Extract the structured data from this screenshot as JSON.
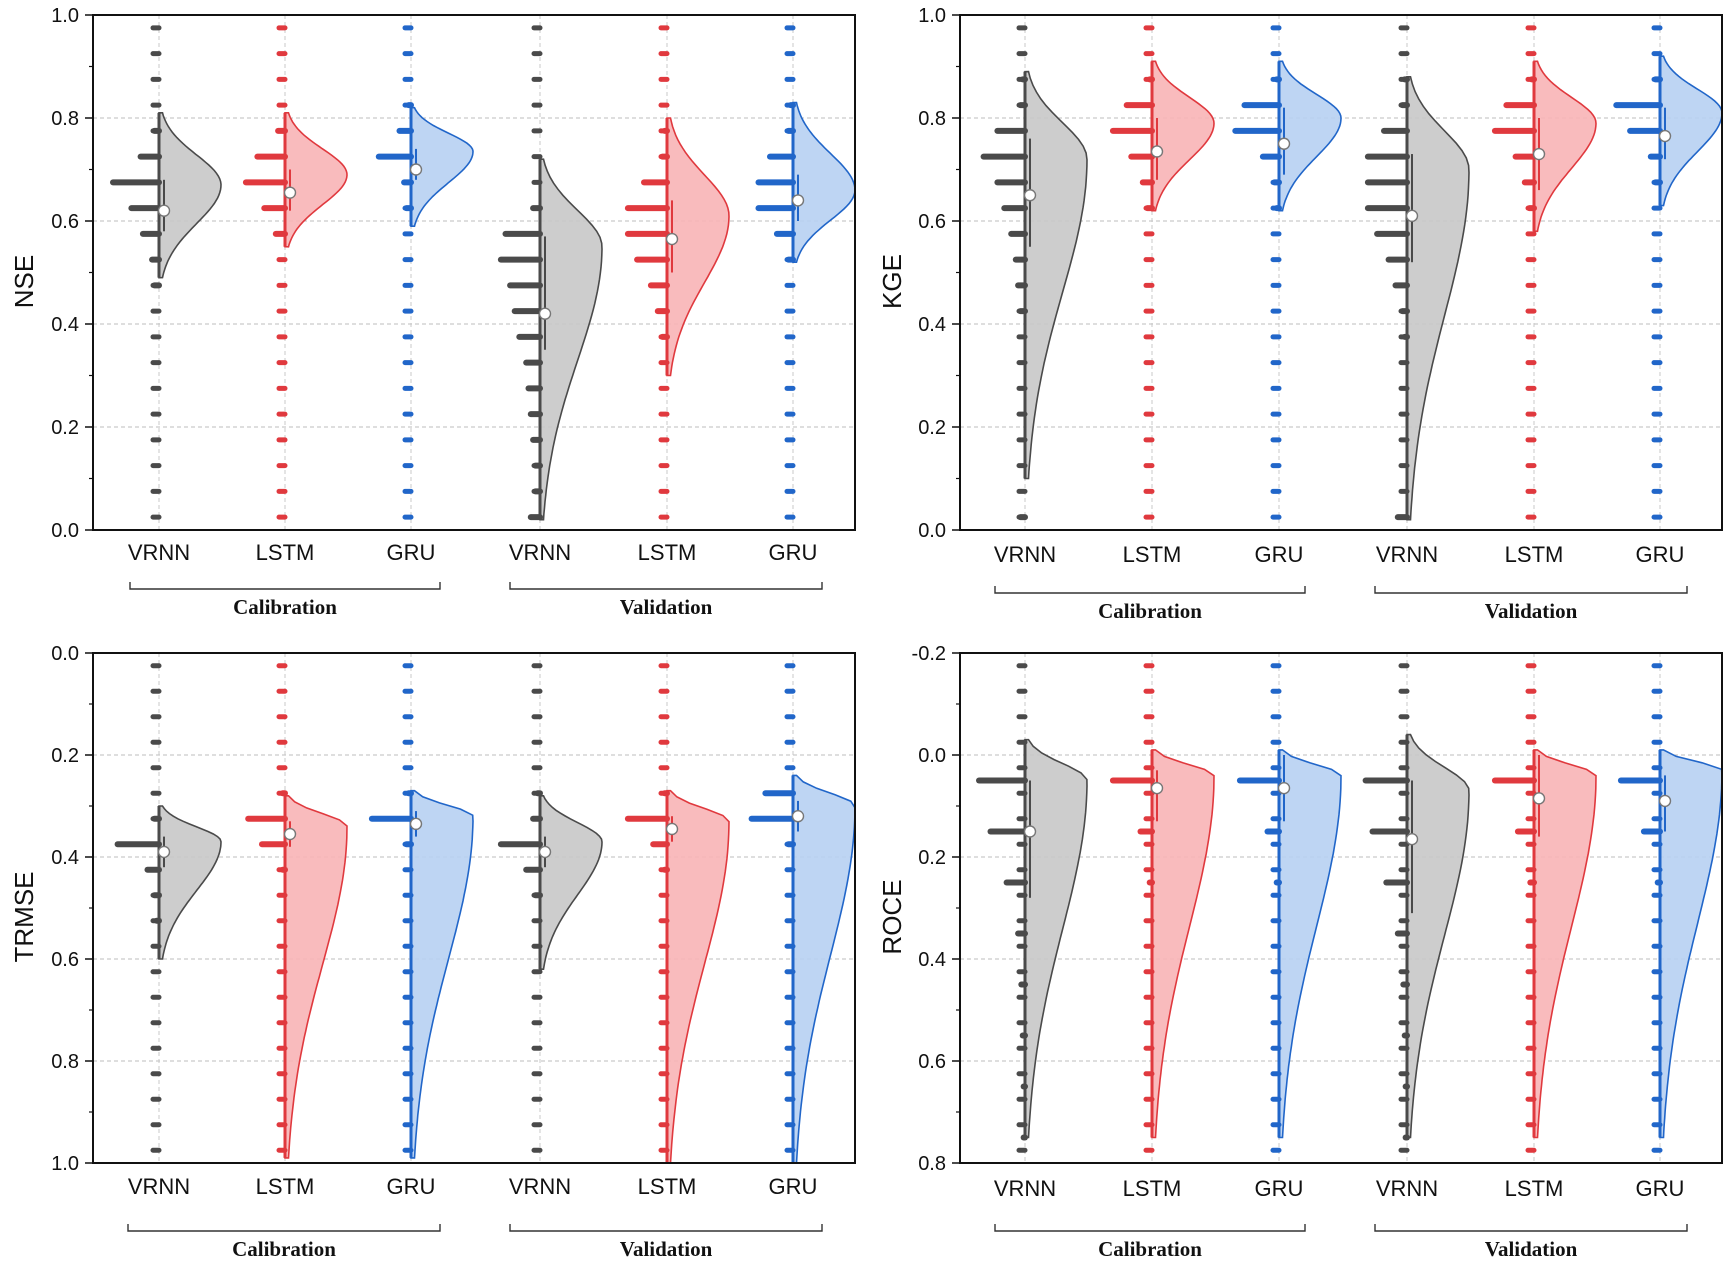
{
  "colors": {
    "VRNN": "#4a4a4a",
    "LSTM": "#e0393e",
    "GRU": "#2166c9",
    "VRNN_fill": "#c8c8c8",
    "LSTM_fill": "#f8b4b6",
    "GRU_fill": "#b7d0f2"
  },
  "chart_data": [
    {
      "type": "violin",
      "ylabel": "NSE",
      "ylim": [
        0.0,
        1.0
      ],
      "y_inverted": false,
      "yticks": [
        "0.0",
        "0.2",
        "0.4",
        "0.6",
        "0.8",
        "1.0"
      ],
      "categories": [
        "VRNN",
        "LSTM",
        "GRU",
        "VRNN",
        "LSTM",
        "GRU"
      ],
      "groups": [
        "Calibration",
        "Validation"
      ],
      "grid": true,
      "series": [
        {
          "model": "VRNN",
          "group": "Calibration",
          "mean": 0.62,
          "q1": 0.58,
          "q3": 0.68,
          "mode": 0.67,
          "min": 0.49,
          "max": 0.81,
          "hist": [
            [
              0.775,
              0.1
            ],
            [
              0.725,
              0.4
            ],
            [
              0.675,
              1.0
            ],
            [
              0.625,
              0.6
            ],
            [
              0.575,
              0.35
            ],
            [
              0.525,
              0.15
            ],
            [
              0.475,
              0.1
            ]
          ]
        },
        {
          "model": "LSTM",
          "group": "Calibration",
          "mean": 0.655,
          "q1": 0.62,
          "q3": 0.7,
          "mode": 0.69,
          "min": 0.55,
          "max": 0.81,
          "hist": [
            [
              0.775,
              0.15
            ],
            [
              0.725,
              0.6
            ],
            [
              0.675,
              0.85
            ],
            [
              0.625,
              0.45
            ],
            [
              0.575,
              0.2
            ]
          ]
        },
        {
          "model": "GRU",
          "group": "Calibration",
          "mean": 0.7,
          "q1": 0.68,
          "q3": 0.74,
          "mode": 0.735,
          "min": 0.59,
          "max": 0.82,
          "hist": [
            [
              0.825,
              0.05
            ],
            [
              0.775,
              0.25
            ],
            [
              0.725,
              0.7
            ],
            [
              0.675,
              0.15
            ],
            [
              0.625,
              0.1
            ]
          ]
        },
        {
          "model": "VRNN",
          "group": "Validation",
          "mean": 0.42,
          "q1": 0.35,
          "q3": 0.57,
          "mode": 0.55,
          "min": 0.02,
          "max": 0.72,
          "hist": [
            [
              0.625,
              0.15
            ],
            [
              0.575,
              0.75
            ],
            [
              0.525,
              0.85
            ],
            [
              0.475,
              0.65
            ],
            [
              0.425,
              0.55
            ],
            [
              0.375,
              0.45
            ],
            [
              0.325,
              0.3
            ],
            [
              0.275,
              0.25
            ],
            [
              0.225,
              0.2
            ],
            [
              0.175,
              0.15
            ],
            [
              0.125,
              0.1
            ],
            [
              0.075,
              0.1
            ],
            [
              0.025,
              0.2
            ]
          ]
        },
        {
          "model": "LSTM",
          "group": "Validation",
          "mean": 0.565,
          "q1": 0.5,
          "q3": 0.64,
          "mode": 0.61,
          "min": 0.3,
          "max": 0.8,
          "hist": [
            [
              0.775,
              0.05
            ],
            [
              0.725,
              0.1
            ],
            [
              0.675,
              0.5
            ],
            [
              0.625,
              0.85
            ],
            [
              0.575,
              0.85
            ],
            [
              0.525,
              0.65
            ],
            [
              0.475,
              0.35
            ],
            [
              0.425,
              0.2
            ],
            [
              0.375,
              0.1
            ]
          ]
        },
        {
          "model": "GRU",
          "group": "Validation",
          "mean": 0.64,
          "q1": 0.6,
          "q3": 0.69,
          "mode": 0.66,
          "min": 0.52,
          "max": 0.83,
          "hist": [
            [
              0.825,
              0.05
            ],
            [
              0.775,
              0.1
            ],
            [
              0.725,
              0.5
            ],
            [
              0.675,
              0.75
            ],
            [
              0.625,
              0.75
            ],
            [
              0.575,
              0.35
            ],
            [
              0.525,
              0.1
            ]
          ]
        }
      ]
    },
    {
      "type": "violin",
      "ylabel": "KGE",
      "ylim": [
        0.0,
        1.0
      ],
      "y_inverted": false,
      "yticks": [
        "0.0",
        "0.2",
        "0.4",
        "0.6",
        "0.8",
        "1.0"
      ],
      "categories": [
        "VRNN",
        "LSTM",
        "GRU",
        "VRNN",
        "LSTM",
        "GRU"
      ],
      "groups": [
        "Calibration",
        "Validation"
      ],
      "grid": true,
      "series": [
        {
          "model": "VRNN",
          "group": "Calibration",
          "mean": 0.65,
          "q1": 0.55,
          "q3": 0.76,
          "mode": 0.72,
          "min": 0.1,
          "max": 0.89,
          "hist": [
            [
              0.875,
              0.05
            ],
            [
              0.825,
              0.1
            ],
            [
              0.775,
              0.6
            ],
            [
              0.725,
              0.9
            ],
            [
              0.675,
              0.6
            ],
            [
              0.625,
              0.45
            ],
            [
              0.575,
              0.3
            ],
            [
              0.525,
              0.2
            ],
            [
              0.475,
              0.15
            ],
            [
              0.425,
              0.1
            ],
            [
              0.025,
              0.1
            ]
          ]
        },
        {
          "model": "LSTM",
          "group": "Calibration",
          "mean": 0.735,
          "q1": 0.68,
          "q3": 0.8,
          "mode": 0.79,
          "min": 0.62,
          "max": 0.91,
          "hist": [
            [
              0.875,
              0.05
            ],
            [
              0.825,
              0.55
            ],
            [
              0.775,
              0.85
            ],
            [
              0.725,
              0.45
            ],
            [
              0.675,
              0.2
            ],
            [
              0.625,
              0.1
            ]
          ]
        },
        {
          "model": "GRU",
          "group": "Calibration",
          "mean": 0.75,
          "q1": 0.69,
          "q3": 0.82,
          "mode": 0.8,
          "min": 0.62,
          "max": 0.91,
          "hist": [
            [
              0.875,
              0.05
            ],
            [
              0.825,
              0.75
            ],
            [
              0.775,
              0.95
            ],
            [
              0.725,
              0.35
            ],
            [
              0.675,
              0.1
            ],
            [
              0.625,
              0.05
            ]
          ]
        },
        {
          "model": "VRNN",
          "group": "Validation",
          "mean": 0.61,
          "q1": 0.52,
          "q3": 0.73,
          "mode": 0.7,
          "min": 0.02,
          "max": 0.88,
          "hist": [
            [
              0.875,
              0.05
            ],
            [
              0.825,
              0.1
            ],
            [
              0.775,
              0.5
            ],
            [
              0.725,
              0.85
            ],
            [
              0.675,
              0.85
            ],
            [
              0.625,
              0.85
            ],
            [
              0.575,
              0.65
            ],
            [
              0.525,
              0.4
            ],
            [
              0.475,
              0.25
            ],
            [
              0.425,
              0.1
            ],
            [
              0.375,
              0.05
            ],
            [
              0.025,
              0.2
            ]
          ]
        },
        {
          "model": "LSTM",
          "group": "Validation",
          "mean": 0.73,
          "q1": 0.66,
          "q3": 0.8,
          "mode": 0.79,
          "min": 0.58,
          "max": 0.91,
          "hist": [
            [
              0.875,
              0.05
            ],
            [
              0.825,
              0.6
            ],
            [
              0.775,
              0.85
            ],
            [
              0.725,
              0.4
            ],
            [
              0.675,
              0.2
            ],
            [
              0.625,
              0.1
            ]
          ]
        },
        {
          "model": "GRU",
          "group": "Validation",
          "mean": 0.765,
          "q1": 0.72,
          "q3": 0.82,
          "mode": 0.81,
          "min": 0.63,
          "max": 0.92,
          "hist": [
            [
              0.875,
              0.1
            ],
            [
              0.825,
              0.95
            ],
            [
              0.775,
              0.65
            ],
            [
              0.725,
              0.2
            ],
            [
              0.675,
              0.1
            ]
          ]
        }
      ]
    },
    {
      "type": "violin",
      "ylabel": "TRMSE",
      "ylim": [
        0.0,
        1.0
      ],
      "y_inverted": true,
      "yticks": [
        "0.0",
        "0.2",
        "0.4",
        "0.6",
        "0.8",
        "1.0"
      ],
      "categories": [
        "VRNN",
        "LSTM",
        "GRU",
        "VRNN",
        "LSTM",
        "GRU"
      ],
      "groups": [
        "Calibration",
        "Validation"
      ],
      "grid": true,
      "series": [
        {
          "model": "VRNN",
          "group": "Calibration",
          "mean": 0.39,
          "q1": 0.36,
          "q3": 0.42,
          "mode": 0.37,
          "min": 0.3,
          "max": 0.6,
          "hist": [
            [
              0.325,
              0.1
            ],
            [
              0.375,
              0.9
            ],
            [
              0.425,
              0.25
            ],
            [
              0.475,
              0.1
            ],
            [
              0.525,
              0.05
            ]
          ]
        },
        {
          "model": "LSTM",
          "group": "Calibration",
          "mean": 0.355,
          "q1": 0.33,
          "q3": 0.38,
          "mode": 0.34,
          "min": 0.28,
          "max": 0.99,
          "hist": [
            [
              0.275,
              0.05
            ],
            [
              0.325,
              0.8
            ],
            [
              0.375,
              0.5
            ],
            [
              0.425,
              0.05
            ]
          ]
        },
        {
          "model": "GRU",
          "group": "Calibration",
          "mean": 0.335,
          "q1": 0.31,
          "q3": 0.36,
          "mode": 0.32,
          "min": 0.27,
          "max": 0.99,
          "hist": [
            [
              0.275,
              0.05
            ],
            [
              0.325,
              0.85
            ],
            [
              0.375,
              0.1
            ]
          ]
        },
        {
          "model": "VRNN",
          "group": "Validation",
          "mean": 0.39,
          "q1": 0.36,
          "q3": 0.42,
          "mode": 0.37,
          "min": 0.28,
          "max": 0.62,
          "hist": [
            [
              0.275,
              0.05
            ],
            [
              0.325,
              0.15
            ],
            [
              0.375,
              0.85
            ],
            [
              0.425,
              0.3
            ],
            [
              0.475,
              0.1
            ]
          ]
        },
        {
          "model": "LSTM",
          "group": "Validation",
          "mean": 0.345,
          "q1": 0.32,
          "q3": 0.37,
          "mode": 0.33,
          "min": 0.27,
          "max": 1.0,
          "hist": [
            [
              0.275,
              0.05
            ],
            [
              0.325,
              0.85
            ],
            [
              0.375,
              0.3
            ],
            [
              0.425,
              0.05
            ]
          ]
        },
        {
          "model": "GRU",
          "group": "Validation",
          "mean": 0.32,
          "q1": 0.29,
          "q3": 0.35,
          "mode": 0.3,
          "min": 0.24,
          "max": 1.0,
          "hist": [
            [
              0.275,
              0.6
            ],
            [
              0.325,
              0.9
            ],
            [
              0.375,
              0.1
            ]
          ]
        }
      ]
    },
    {
      "type": "violin",
      "ylabel": "ROCE",
      "ylim": [
        -0.2,
        0.8
      ],
      "y_inverted": true,
      "yticks": [
        "-0.2",
        "0.0",
        "0.2",
        "0.4",
        "0.6",
        "0.8"
      ],
      "categories": [
        "VRNN",
        "LSTM",
        "GRU",
        "VRNN",
        "LSTM",
        "GRU"
      ],
      "groups": [
        "Calibration",
        "Validation"
      ],
      "grid": true,
      "series": [
        {
          "model": "VRNN",
          "group": "Calibration",
          "mean": 0.15,
          "q1": 0.05,
          "q3": 0.28,
          "mode": 0.05,
          "min": -0.03,
          "max": 0.75,
          "hist": [
            [
              0.05,
              1.0
            ],
            [
              0.15,
              0.75
            ],
            [
              0.25,
              0.4
            ],
            [
              0.35,
              0.15
            ],
            [
              0.45,
              0.08
            ],
            [
              0.55,
              0.05
            ],
            [
              0.65,
              0.03
            ],
            [
              0.75,
              0.03
            ]
          ]
        },
        {
          "model": "LSTM",
          "group": "Calibration",
          "mean": 0.065,
          "q1": 0.03,
          "q3": 0.13,
          "mode": 0.04,
          "min": -0.01,
          "max": 0.75,
          "hist": [
            [
              0.05,
              0.85
            ],
            [
              0.15,
              0.25
            ],
            [
              0.25,
              0.05
            ]
          ]
        },
        {
          "model": "GRU",
          "group": "Calibration",
          "mean": 0.065,
          "q1": 0.0,
          "q3": 0.13,
          "mode": 0.04,
          "min": -0.01,
          "max": 0.75,
          "hist": [
            [
              0.05,
              0.85
            ],
            [
              0.15,
              0.25
            ],
            [
              0.25,
              0.05
            ]
          ]
        },
        {
          "model": "VRNN",
          "group": "Validation",
          "mean": 0.165,
          "q1": 0.05,
          "q3": 0.31,
          "mode": 0.07,
          "min": -0.04,
          "max": 0.75,
          "hist": [
            [
              0.05,
              0.9
            ],
            [
              0.15,
              0.75
            ],
            [
              0.25,
              0.45
            ],
            [
              0.35,
              0.2
            ],
            [
              0.45,
              0.08
            ],
            [
              0.55,
              0.05
            ],
            [
              0.65,
              0.03
            ],
            [
              0.75,
              0.03
            ]
          ]
        },
        {
          "model": "LSTM",
          "group": "Validation",
          "mean": 0.085,
          "q1": 0.0,
          "q3": 0.16,
          "mode": 0.04,
          "min": -0.01,
          "max": 0.75,
          "hist": [
            [
              0.05,
              0.85
            ],
            [
              0.15,
              0.35
            ],
            [
              0.25,
              0.08
            ]
          ]
        },
        {
          "model": "GRU",
          "group": "Validation",
          "mean": 0.09,
          "q1": 0.04,
          "q3": 0.15,
          "mode": 0.03,
          "min": -0.01,
          "max": 0.75,
          "hist": [
            [
              0.05,
              0.85
            ],
            [
              0.15,
              0.35
            ],
            [
              0.25,
              0.05
            ]
          ]
        }
      ]
    }
  ]
}
